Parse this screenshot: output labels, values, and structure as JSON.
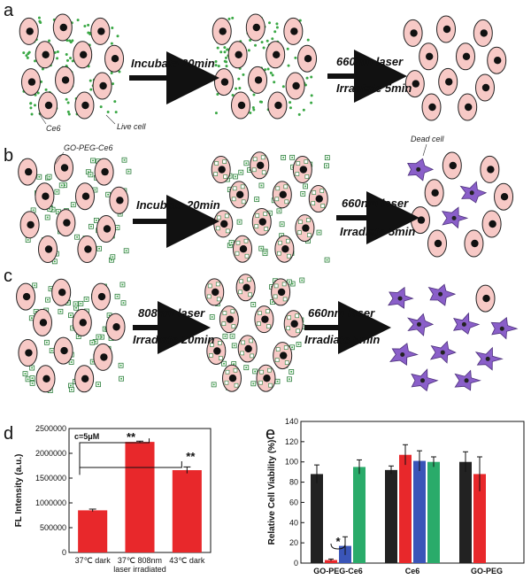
{
  "panels": {
    "a": {
      "letter": "a",
      "arrow1": "Incubate 20min",
      "arrow2_line1": "660nm laser",
      "arrow2_line2": "Irradiate 5min",
      "label_ce6": "Ce6",
      "label_live": "Live cell"
    },
    "b": {
      "letter": "b",
      "arrow1": "Incubate 20min",
      "arrow2_line1": "660nm laser",
      "arrow2_line2": "Irradiate 5min",
      "label_agent": "GO-PEG-Ce6",
      "label_dead": "Dead cell"
    },
    "c": {
      "letter": "c",
      "arrow1_line1": "808nm laser",
      "arrow1_line2": "Irradiate 20min",
      "arrow2_line1": "660nm laser",
      "arrow2_line2": "Irradiate 5min"
    },
    "d": {
      "letter": "d"
    },
    "e": {
      "letter": "e"
    }
  },
  "colors": {
    "cell_fill": "#f7c9c6",
    "nucleus": "#111111",
    "ce6_dot": "#3aa845",
    "dead_cell": "#8a5fc9",
    "bar_red": "#e8282b",
    "bar_black": "#222222",
    "bar_blue": "#3a55b8",
    "bar_green": "#2aab6a"
  },
  "chart_data": [
    {
      "type": "bar",
      "annotation": "c=5μM",
      "ylabel": "FL Intensity (a.u.)",
      "ylim": [
        0,
        2500000
      ],
      "yticks": [
        "0",
        "500000",
        "1000000",
        "1500000",
        "2000000",
        "2500000"
      ],
      "categories": [
        "37℃ dark",
        "37℃ 808nm laser irradiated",
        "43℃ dark"
      ],
      "category_lines": [
        [
          "37℃ dark"
        ],
        [
          "37℃ 808nm",
          "laser irradiated"
        ],
        [
          "43℃ dark"
        ]
      ],
      "values": [
        850000,
        2230000,
        1660000
      ],
      "errors": [
        25000,
        15000,
        65000
      ],
      "significance": [
        "**",
        "**"
      ]
    },
    {
      "type": "bar",
      "ylabel": "Relative Cell Viability (%)",
      "ylim": [
        0,
        140
      ],
      "yticks": [
        "0",
        "20",
        "40",
        "60",
        "80",
        "100",
        "120",
        "140"
      ],
      "categories": [
        "GO-PEG-Ce6",
        "Ce6",
        "GO-PEG"
      ],
      "series": [
        {
          "values": [
            88,
            92,
            100
          ],
          "errors": [
            9,
            4,
            10
          ]
        },
        {
          "values": [
            3,
            107,
            88
          ],
          "errors": [
            1,
            10,
            17
          ]
        },
        {
          "values": [
            17,
            101,
            null
          ],
          "errors": [
            9,
            10,
            null
          ]
        },
        {
          "values": [
            95,
            100,
            null
          ],
          "errors": [
            7,
            5,
            null
          ]
        }
      ],
      "significance": [
        "*"
      ]
    }
  ]
}
